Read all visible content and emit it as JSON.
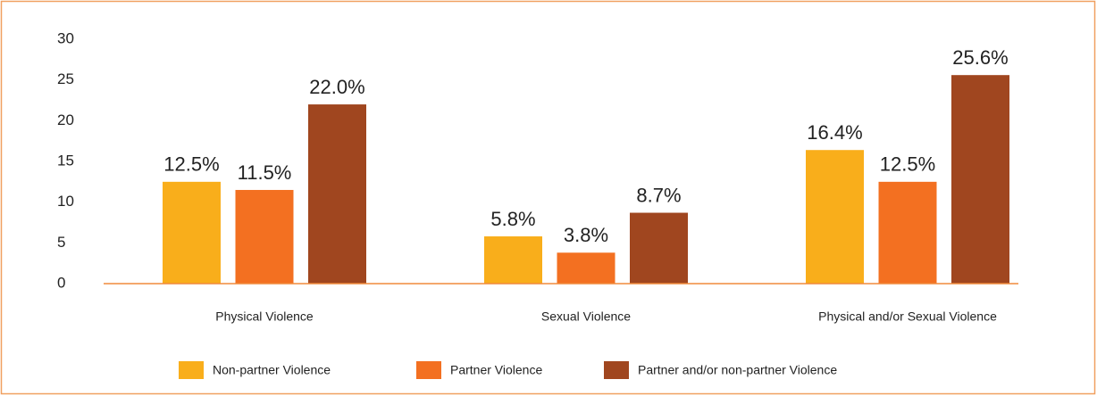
{
  "chart_data": {
    "type": "bar",
    "categories": [
      "Physical Violence",
      "Sexual Violence",
      "Physical  and/or Sexual Violence"
    ],
    "series": [
      {
        "name": "Non-partner Violence",
        "color": "#f9ae1b",
        "values": [
          12.5,
          5.8,
          16.4
        ],
        "value_labels": [
          "12.5%",
          "5.8%",
          "16.4%"
        ]
      },
      {
        "name": "Partner Violence",
        "color": "#f37021",
        "values": [
          11.5,
          3.8,
          12.5
        ],
        "value_labels": [
          "11.5%",
          "3.8%",
          "12.5%"
        ]
      },
      {
        "name": "Partner and/or non-partner Violence",
        "color": "#a0461f",
        "values": [
          22.0,
          8.7,
          25.6
        ],
        "value_labels": [
          "22.0%",
          "8.7%",
          "25.6%"
        ]
      }
    ],
    "ylim": [
      0,
      30
    ],
    "yticks": [
      0,
      5,
      10,
      15,
      20,
      25,
      30
    ],
    "grid": false,
    "legend": "bottom"
  }
}
